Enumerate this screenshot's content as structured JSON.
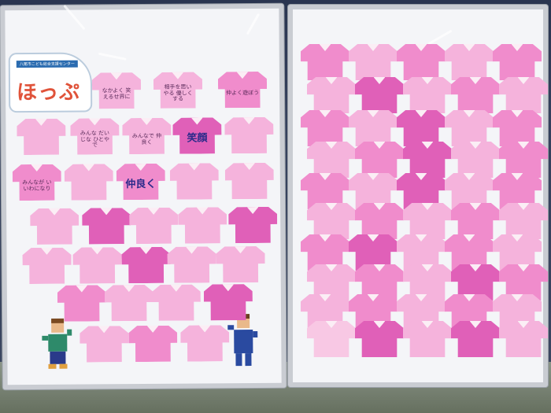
{
  "logo": {
    "title": "ほっぷ",
    "subtitle": "八尾市こども総合支援センター"
  },
  "colors": {
    "light_pink": "#f5b3dc",
    "pink": "#f08ccc",
    "magenta": "#e060b8",
    "pale": "#f8c8e4"
  },
  "left_board": {
    "shirts": [
      {
        "text": "なかよく 笑えるせ界に",
        "tone": "light_pink"
      },
      {
        "text": "相手を思い やる 優しく する",
        "tone": "light_pink"
      },
      {
        "text": "仲よく遊ぼう",
        "tone": "pink"
      },
      {
        "text": "",
        "tone": "light_pink"
      },
      {
        "text": "みんな だいじな ひとやで",
        "tone": "light_pink"
      },
      {
        "text": "みんなで 仲良く",
        "tone": "light_pink"
      },
      {
        "text": "笑顔",
        "tone": "magenta",
        "big": true
      },
      {
        "text": "",
        "tone": "light_pink"
      },
      {
        "text": "みんなが いいわになり",
        "tone": "pink"
      },
      {
        "text": "",
        "tone": "light_pink"
      },
      {
        "text": "仲良く",
        "tone": "pink",
        "big": true
      },
      {
        "text": "",
        "tone": "light_pink"
      },
      {
        "text": "",
        "tone": "light_pink"
      },
      {
        "text": "",
        "tone": "light_pink"
      },
      {
        "text": "",
        "tone": "magenta"
      },
      {
        "text": "",
        "tone": "light_pink"
      },
      {
        "text": "",
        "tone": "light_pink"
      },
      {
        "text": "",
        "tone": "magenta"
      },
      {
        "text": "",
        "tone": "light_pink"
      },
      {
        "text": "",
        "tone": "light_pink"
      },
      {
        "text": "",
        "tone": "magenta"
      },
      {
        "text": "",
        "tone": "light_pink"
      },
      {
        "text": "",
        "tone": "light_pink"
      },
      {
        "text": "",
        "tone": "pink"
      },
      {
        "text": "",
        "tone": "light_pink"
      },
      {
        "text": "",
        "tone": "light_pink"
      },
      {
        "text": "",
        "tone": "magenta"
      },
      {
        "text": "",
        "tone": "light_pink"
      },
      {
        "text": "",
        "tone": "pink"
      },
      {
        "text": "",
        "tone": "light_pink"
      }
    ]
  },
  "right_board": {
    "shirt_tones": [
      "pink",
      "light_pink",
      "pink",
      "light_pink",
      "pink",
      "light_pink",
      "magenta",
      "light_pink",
      "pink",
      "light_pink",
      "pink",
      "light_pink",
      "magenta",
      "light_pink",
      "pink",
      "light_pink",
      "pink",
      "magenta",
      "light_pink",
      "pink",
      "pink",
      "light_pink",
      "magenta",
      "light_pink",
      "pink",
      "light_pink",
      "pink",
      "light_pink",
      "pink",
      "light_pink",
      "pink",
      "magenta",
      "light_pink",
      "pink",
      "light_pink",
      "light_pink",
      "pink",
      "light_pink",
      "magenta",
      "pink",
      "light_pink",
      "pink",
      "light_pink",
      "pink",
      "light_pink",
      "pale",
      "magenta",
      "light_pink",
      "magenta",
      "light_pink"
    ]
  }
}
